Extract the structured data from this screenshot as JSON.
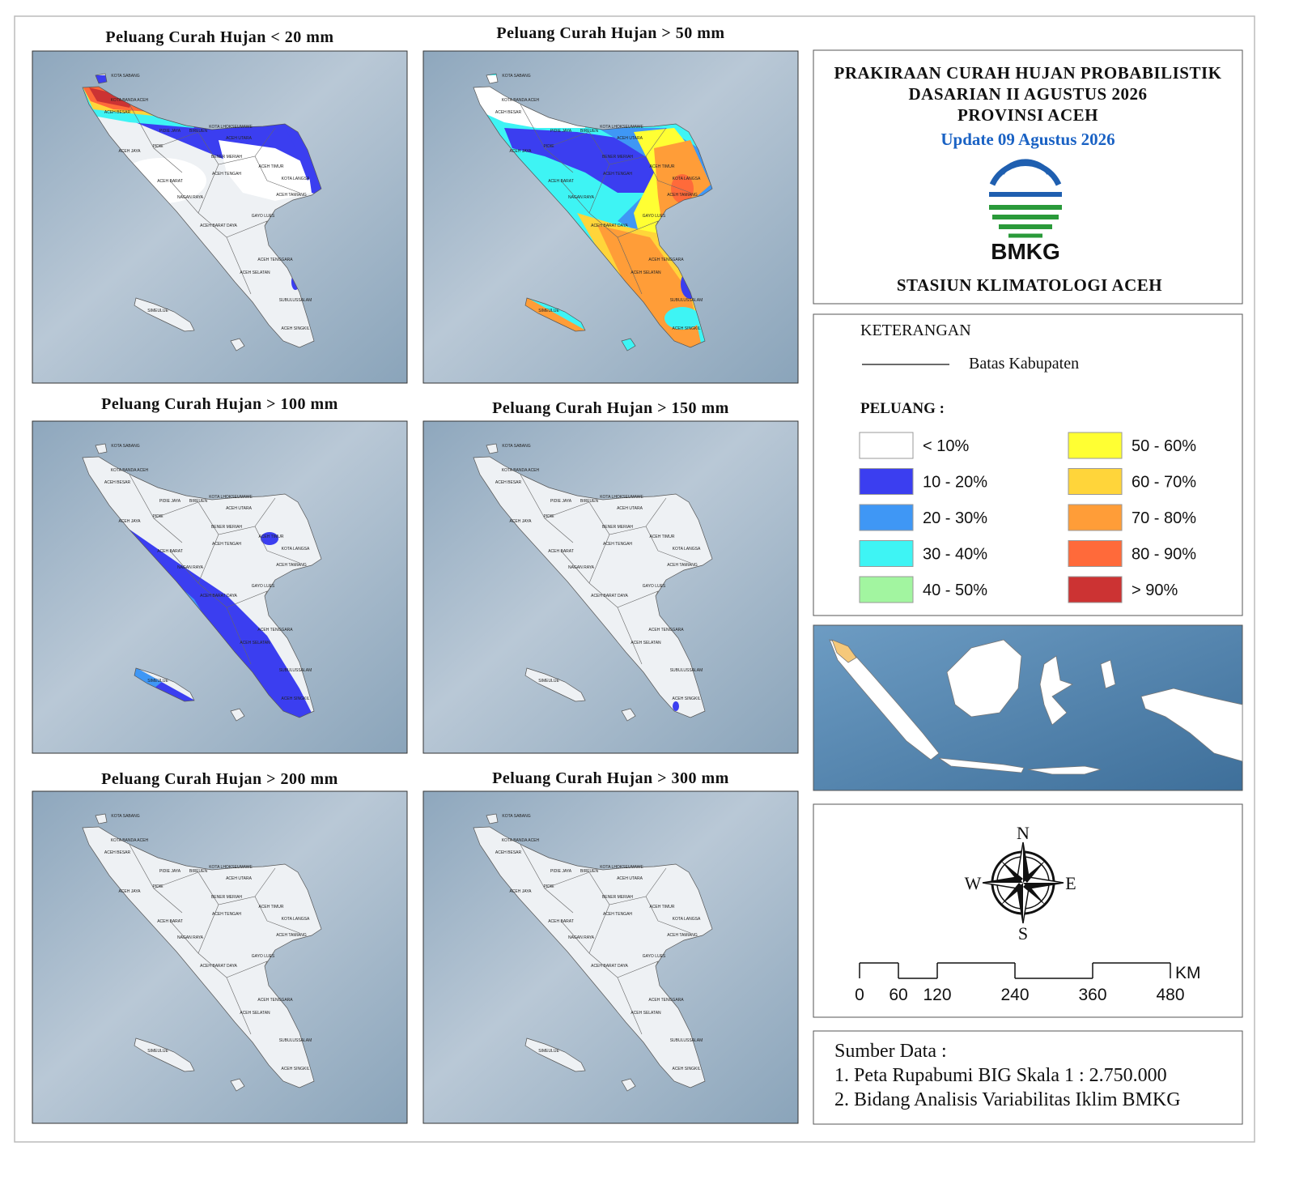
{
  "panels": [
    {
      "title": "Peluang Curah Hujan < 20 mm"
    },
    {
      "title": "Peluang Curah Hujan > 50 mm"
    },
    {
      "title": "Peluang Curah Hujan > 100 mm"
    },
    {
      "title": "Peluang Curah Hujan > 150 mm"
    },
    {
      "title": "Peluang Curah Hujan > 200 mm"
    },
    {
      "title": "Peluang Curah Hujan > 300 mm"
    }
  ],
  "districts": [
    "KOTA SABANG",
    "KOTA BANDA ACEH",
    "ACEH BESAR",
    "PIDIE JAYA",
    "BIREUEN",
    "KOTA LHOKSEUMAWE",
    "ACEH UTARA",
    "PIDIE",
    "ACEH JAYA",
    "BENER MERIAH",
    "ACEH TIMUR",
    "KOTA LANGSA",
    "ACEH TENGAH",
    "ACEH BARAT",
    "NAGAN RAYA",
    "ACEH TAMIANG",
    "GAYO LUES",
    "ACEH BARAT DAYA",
    "ACEH TENGGARA",
    "ACEH SELATAN",
    "SUBULUSSALAM",
    "SIMEULUE",
    "ACEH SINGKIL"
  ],
  "header": {
    "lines": [
      "PRAKIRAAN CURAH HUJAN PROBABILISTIK",
      "DASARIAN II AGUSTUS 2026",
      "PROVINSI ACEH"
    ],
    "update": "Update 09 Agustus 2026",
    "logo": "BMKG",
    "station": "STASIUN KLIMATOLOGI ACEH"
  },
  "legend": {
    "title": "KETERANGAN",
    "boundary": "Batas Kabupaten",
    "heading": "PELUANG :",
    "items": [
      {
        "label": "< 10%",
        "color": "#ffffff"
      },
      {
        "label": "10 - 20%",
        "color": "#3b3ef0"
      },
      {
        "label": "20 - 30%",
        "color": "#3f97f5"
      },
      {
        "label": "30 - 40%",
        "color": "#3ef4f4"
      },
      {
        "label": "40 - 50%",
        "color": "#a2f5a0"
      },
      {
        "label": "50 - 60%",
        "color": "#ffff33"
      },
      {
        "label": "60 - 70%",
        "color": "#ffd53a"
      },
      {
        "label": "70 - 80%",
        "color": "#ff9d38"
      },
      {
        "label": "80 - 90%",
        "color": "#ff6a3a"
      },
      {
        "label": "> 90%",
        "color": "#cc3333"
      }
    ]
  },
  "compass": {
    "n": "N",
    "e": "E",
    "s": "S",
    "w": "W"
  },
  "scale": {
    "ticks": [
      0,
      60,
      120,
      240,
      360,
      480
    ],
    "unit": "KM"
  },
  "sources": {
    "title": "Sumber Data :",
    "items": [
      "1. Peta Rupabumi BIG Skala 1 : 2.750.000",
      "2. Bidang Analisis Variabilitas Iklim BMKG"
    ]
  }
}
